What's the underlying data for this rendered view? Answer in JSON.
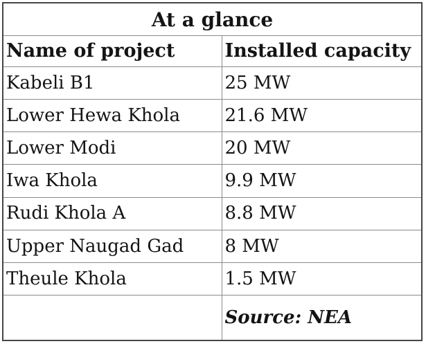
{
  "table": {
    "title": "At a glance",
    "headers": [
      "Name of project",
      "Installed capacity"
    ],
    "rows": [
      {
        "name": "Kabeli B1",
        "capacity": "25 MW"
      },
      {
        "name": "Lower Hewa Khola",
        "capacity": "21.6 MW"
      },
      {
        "name": "Lower Modi",
        "capacity": "20 MW"
      },
      {
        "name": "Iwa Khola",
        "capacity": "9.9 MW"
      },
      {
        "name": "Rudi Khola A",
        "capacity": "8.8 MW"
      },
      {
        "name": "Upper Naugad Gad",
        "capacity": "8 MW"
      },
      {
        "name": "Theule Khola",
        "capacity": "1.5 MW"
      }
    ],
    "source": "Source: NEA",
    "colors": {
      "text": "#141414",
      "background": "#ffffff",
      "inner_border": "#8a8a8a",
      "outer_border": "#454545"
    }
  },
  "chart_data": {
    "type": "table",
    "title": "At a glance",
    "columns": [
      "Name of project",
      "Installed capacity"
    ],
    "rows": [
      [
        "Kabeli B1",
        "25 MW"
      ],
      [
        "Lower Hewa Khola",
        "21.6 MW"
      ],
      [
        "Lower Modi",
        "20 MW"
      ],
      [
        "Iwa Khola",
        "9.9 MW"
      ],
      [
        "Rudi Khola A",
        "8.8 MW"
      ],
      [
        "Upper Naugad Gad",
        "8 MW"
      ],
      [
        "Theule Khola",
        "1.5 MW"
      ]
    ],
    "values_mw": [
      25,
      21.6,
      20,
      9.9,
      8.8,
      8,
      1.5
    ],
    "source": "Source: NEA"
  }
}
